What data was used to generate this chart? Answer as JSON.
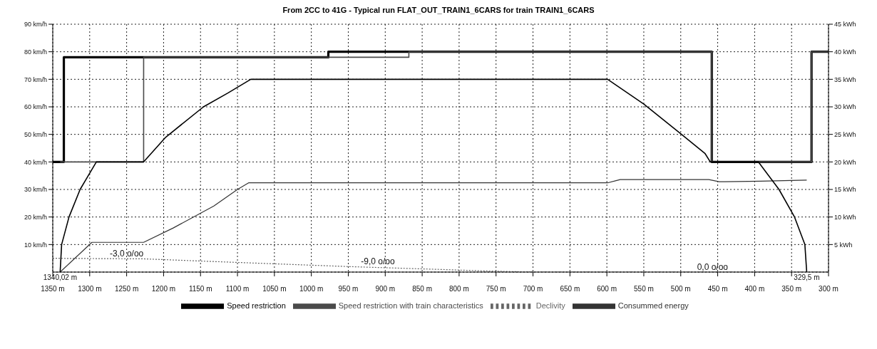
{
  "chart_data": {
    "type": "line",
    "title": "From 2CC to 41G - Typical run FLAT_OUT_TRAIN1_6CARS for train TRAIN1_6CARS",
    "xlim": [
      1350,
      300
    ],
    "xticks": [
      {
        "value": 1350,
        "label": "1350 m"
      },
      {
        "value": 1300,
        "label": "1300 m"
      },
      {
        "value": 1250,
        "label": "1250 m"
      },
      {
        "value": 1200,
        "label": "1200 m"
      },
      {
        "value": 1150,
        "label": "1150 m"
      },
      {
        "value": 1100,
        "label": "1100 m"
      },
      {
        "value": 1050,
        "label": "1050 m"
      },
      {
        "value": 1000,
        "label": "1000 m"
      },
      {
        "value": 950,
        "label": "950 m"
      },
      {
        "value": 900,
        "label": "900 m"
      },
      {
        "value": 850,
        "label": "850 m"
      },
      {
        "value": 800,
        "label": "800 m"
      },
      {
        "value": 750,
        "label": "750 m"
      },
      {
        "value": 700,
        "label": "700 m"
      },
      {
        "value": 650,
        "label": "650 m"
      },
      {
        "value": 600,
        "label": "600 m"
      },
      {
        "value": 550,
        "label": "550 m"
      },
      {
        "value": 500,
        "label": "500 m"
      },
      {
        "value": 450,
        "label": "450 m"
      },
      {
        "value": 400,
        "label": "400 m"
      },
      {
        "value": 350,
        "label": "350 m"
      },
      {
        "value": 300,
        "label": "300 m"
      }
    ],
    "ylim": [
      0,
      90
    ],
    "yticks": [
      {
        "value": 10,
        "label": "10 km/h"
      },
      {
        "value": 20,
        "label": "20 km/h"
      },
      {
        "value": 30,
        "label": "30 km/h"
      },
      {
        "value": 40,
        "label": "40 km/h"
      },
      {
        "value": 50,
        "label": "50 km/h"
      },
      {
        "value": 60,
        "label": "60 km/h"
      },
      {
        "value": 70,
        "label": "70 km/h"
      },
      {
        "value": 80,
        "label": "80 km/h"
      },
      {
        "value": 90,
        "label": "90 km/h"
      }
    ],
    "y2lim": [
      0,
      45
    ],
    "y2ticks": [
      {
        "value": 5,
        "label": "5 kWh"
      },
      {
        "value": 10,
        "label": "10 kWh"
      },
      {
        "value": 15,
        "label": "15 kWh"
      },
      {
        "value": 20,
        "label": "20 kWh"
      },
      {
        "value": 25,
        "label": "25 kWh"
      },
      {
        "value": 30,
        "label": "30 kWh"
      },
      {
        "value": 35,
        "label": "35 kWh"
      },
      {
        "value": 40,
        "label": "40 kWh"
      },
      {
        "value": 45,
        "label": "45 kWh"
      }
    ],
    "grid": true,
    "legend": "bottom",
    "series": [
      {
        "name": "Speed restriction",
        "color": "#000000",
        "x": [
          1350,
          1335,
          1335,
          977,
          977,
          458,
          458,
          323,
          323,
          300
        ],
        "values": [
          40,
          40,
          78,
          78,
          80,
          80,
          40,
          40,
          80,
          80
        ]
      },
      {
        "name": "Speed restriction with train characteristics",
        "color": "#4a4a4a",
        "x": [
          1340.02,
          1227,
          1227,
          868,
          868,
          458,
          458,
          323,
          323,
          300
        ],
        "values": [
          40,
          40,
          78,
          78,
          80,
          80,
          40,
          40,
          80,
          80
        ]
      },
      {
        "name": "Declivity",
        "color": "#666666",
        "line_style": "dotted",
        "x": [
          1350,
          1227,
          1100,
          950,
          830,
          763,
          700,
          300
        ],
        "values": [
          5,
          4.8,
          3.5,
          2,
          1,
          0.4,
          0,
          0
        ]
      },
      {
        "name": "Consummed energy",
        "color": "#333333",
        "axis": "y2",
        "x": [
          1340.02,
          1297,
          1227,
          1187,
          1132,
          1100,
          1085,
          599,
          582,
          462,
          448,
          392,
          329.5
        ],
        "values": [
          0,
          5.4,
          5.4,
          8,
          12,
          15,
          16.2,
          16.2,
          16.8,
          16.8,
          16.4,
          16.5,
          16.7
        ]
      },
      {
        "color": "#000000",
        "x": [
          1340.02,
          1338,
          1328,
          1313,
          1291,
          1227,
          1197,
          1146,
          1113,
          1082,
          599,
          550,
          499,
          467,
          460,
          395,
          367,
          346,
          332,
          329.5
        ],
        "values": [
          0,
          10,
          20,
          30,
          40,
          40,
          49,
          60,
          65,
          70,
          70,
          61,
          50,
          43,
          40,
          40,
          30,
          20,
          10,
          0
        ]
      }
    ],
    "annotations": [
      {
        "text": "-3,0 o/oo",
        "x": 1250,
        "y": 5
      },
      {
        "text": "-9,0 o/oo",
        "x": 910,
        "y": 2
      },
      {
        "text": "0,0 o/oo",
        "x": 457,
        "y": 0
      },
      {
        "text": "1340,02 m",
        "x": 1340.02,
        "y": 0
      },
      {
        "text": "329,5 m",
        "x": 329.5,
        "y": 0
      }
    ]
  }
}
